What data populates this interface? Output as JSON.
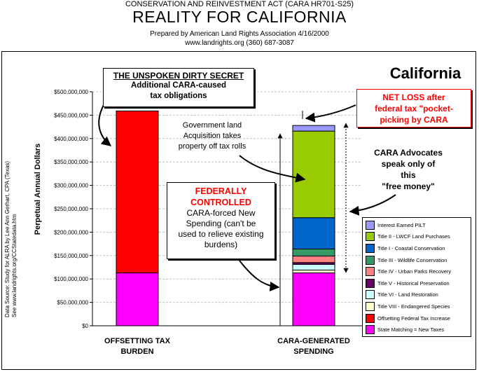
{
  "header": {
    "top": "CONSERVATION AND REINVESTMENT ACT (CARA HR701-S25)",
    "main": "REALITY FOR CALIFORNIA",
    "prepared": "Prepared by American Land Rights Association  4/16/2000",
    "web": "www.landrights.org  (360) 687-3087"
  },
  "state_label": "California",
  "source_note": {
    "line1": "Data Source: Study for ALRA by Lee Ann Gerhart, CPA (Texas)",
    "line2": "See www.landrights.org/CCStatedata.htm"
  },
  "annotations": {
    "secret_title": "THE UNSPOKEN DIRTY SECRET",
    "secret_line1": "Additional CARA-caused",
    "secret_line2": "tax obligations",
    "net_loss_line1": "NET LOSS after",
    "net_loss_line2": "federal tax \"pocket-",
    "net_loss_line3": "picking by CARA",
    "govt_line1": "Government land",
    "govt_line2": "Acquisition takes",
    "govt_line3": "property off tax rolls",
    "advocates_line1": "CARA Advocates",
    "advocates_line2": "speak only of",
    "advocates_line3": "this",
    "advocates_line4": "\"free money\"",
    "fed_line1": "FEDERALLY",
    "fed_line2": "CONTROLLED",
    "fed_line3": "CARA-forced New",
    "fed_line4": "Spending (can't be",
    "fed_line5": "used to relieve existing",
    "fed_line6": "burdens)"
  },
  "legend": [
    {
      "label": "Interest Earned PILT",
      "color": "#9999ff"
    },
    {
      "label": "Title II - LWCF Land Purchases",
      "color": "#99cc00"
    },
    {
      "label": "Title I - Coastal Conservation",
      "color": "#0066cc"
    },
    {
      "label": "Title III - Wildlife Conservation",
      "color": "#339966"
    },
    {
      "label": "Title IV - Urban Parks Recovery",
      "color": "#ff8080"
    },
    {
      "label": "Title V - Historical Preservation",
      "color": "#660066"
    },
    {
      "label": "Title VI - Land Restoration",
      "color": "#ccffff"
    },
    {
      "label": "Title VIII - Endangered Species",
      "color": "#ffffcc"
    },
    {
      "label": "Offsetting Federal Tax Increase",
      "color": "#ff0000"
    },
    {
      "label": "State Matching = New Taxes",
      "color": "#ff00ff"
    }
  ],
  "chart_data": {
    "type": "bar",
    "stacked": true,
    "ylabel": "Perpetual Annual Dollars",
    "ylim": [
      0,
      500000000
    ],
    "yticks": [
      "$0",
      "$50,000,000",
      "$100,000,000",
      "$150,000,000",
      "$200,000,000",
      "$250,000,000",
      "$300,000,000",
      "$350,000,000",
      "$400,000,000",
      "$450,000,000",
      "$500,000,000"
    ],
    "grid": true,
    "categories": [
      "OFFSETTING TAX BURDEN",
      "CARA-GENERATED SPENDING"
    ],
    "category_lines": [
      [
        "OFFSETTING TAX",
        "BURDEN"
      ],
      [
        "CARA-GENERATED",
        "SPENDING"
      ]
    ],
    "series": [
      {
        "name": "State Matching = New Taxes",
        "color": "#ff00ff",
        "values": [
          113000000,
          113000000
        ]
      },
      {
        "name": "Offsetting Federal Tax Increase",
        "color": "#ff0000",
        "values": [
          346000000,
          0
        ]
      },
      {
        "name": "Title VIII - Endangered Species",
        "color": "#ffffcc",
        "values": [
          0,
          6000000
        ]
      },
      {
        "name": "Title VI - Land Restoration",
        "color": "#ccffff",
        "values": [
          0,
          12000000
        ]
      },
      {
        "name": "Title V - Historical Preservation",
        "color": "#660066",
        "values": [
          0,
          4000000
        ]
      },
      {
        "name": "Title IV - Urban Parks Recovery",
        "color": "#ff8080",
        "values": [
          0,
          14000000
        ]
      },
      {
        "name": "Title III - Wildlife Conservation",
        "color": "#339966",
        "values": [
          0,
          15000000
        ]
      },
      {
        "name": "Title I - Coastal Conservation",
        "color": "#0066cc",
        "values": [
          0,
          67000000
        ]
      },
      {
        "name": "Title II - LWCF Land Purchases",
        "color": "#99cc00",
        "values": [
          0,
          185000000
        ]
      },
      {
        "name": "Interest Earned PILT",
        "color": "#9999ff",
        "values": [
          0,
          12000000
        ]
      }
    ]
  }
}
